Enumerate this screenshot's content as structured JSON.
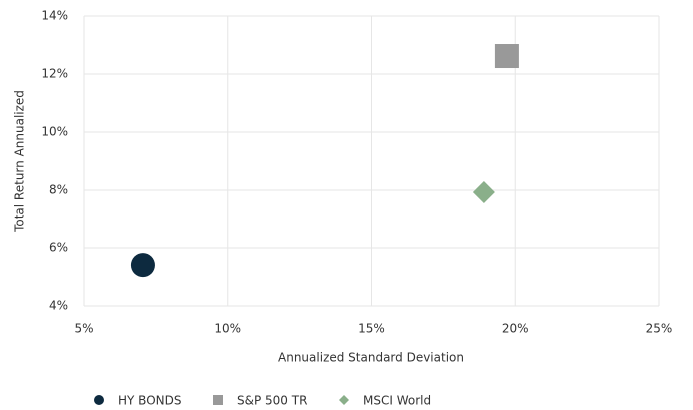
{
  "chart_data": {
    "type": "scatter",
    "xlabel": "Annualized Standard Deviation",
    "ylabel": "Total Return Annualized",
    "xlim": [
      5,
      25
    ],
    "ylim": [
      4,
      14
    ],
    "xticks": [
      {
        "value": 5,
        "label": "5%"
      },
      {
        "value": 10,
        "label": "10%"
      },
      {
        "value": 15,
        "label": "15%"
      },
      {
        "value": 20,
        "label": "20%"
      },
      {
        "value": 25,
        "label": "25%"
      }
    ],
    "yticks": [
      {
        "value": 4,
        "label": "4%"
      },
      {
        "value": 6,
        "label": "6%"
      },
      {
        "value": 8,
        "label": "8%"
      },
      {
        "value": 10,
        "label": "10%"
      },
      {
        "value": 12,
        "label": "12%"
      },
      {
        "value": 14,
        "label": "14%"
      }
    ],
    "grid": true,
    "legend": "bottom",
    "series": [
      {
        "name": "HY BONDS",
        "color": "#0d2a3f",
        "marker": "circle",
        "x": [
          7.05
        ],
        "values": [
          5.41
        ]
      },
      {
        "name": "S&P 500 TR",
        "color": "#999999",
        "marker": "square",
        "x": [
          19.71
        ],
        "values": [
          12.62
        ]
      },
      {
        "name": "MSCI World",
        "color": "#8aaf8a",
        "marker": "diamond",
        "x": [
          18.91
        ],
        "values": [
          7.93
        ]
      }
    ]
  }
}
